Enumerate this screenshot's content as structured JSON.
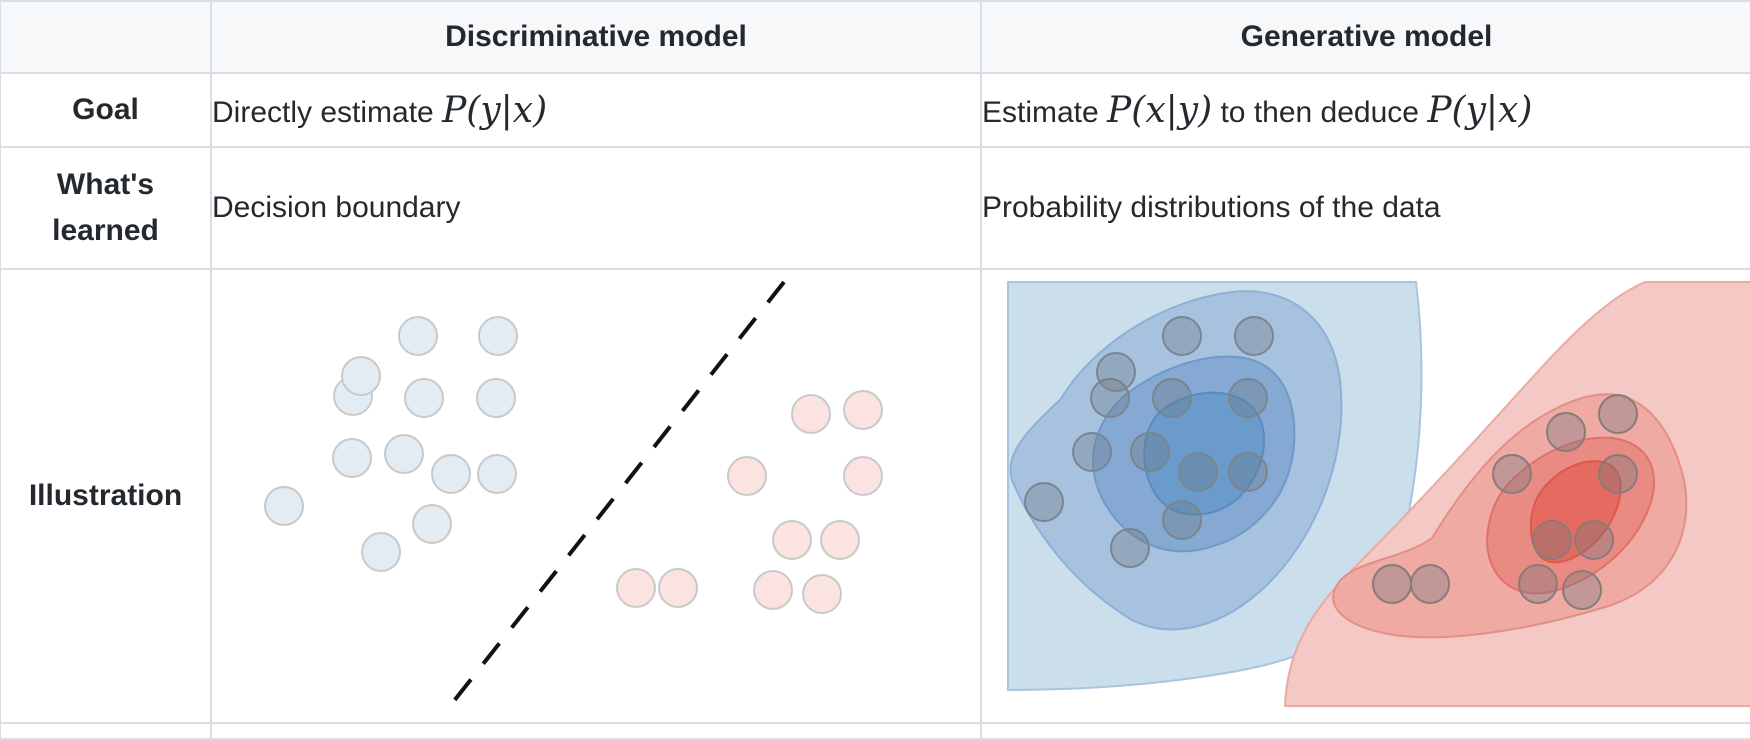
{
  "table": {
    "columns": [
      "",
      "Discriminative model",
      "Generative model"
    ],
    "rows": {
      "goal": {
        "label": "Goal",
        "discriminative": {
          "text": "Directly estimate ",
          "math": "P(y|x)"
        },
        "generative": {
          "text1": "Estimate ",
          "math1": "P(x|y)",
          "text2": " to then deduce ",
          "math2": "P(y|x)"
        }
      },
      "learned": {
        "label": "What's learned",
        "discriminative": "Decision boundary",
        "generative": "Probability distributions of the data"
      },
      "illustration": {
        "label": "Illustration"
      }
    }
  },
  "colors": {
    "blue_point_fill": "#e3ebf3",
    "red_point_fill": "#fae3e1",
    "point_stroke": "#c9c9c9",
    "boundary_line": "#111111",
    "blue_contours": [
      "#cbdeeb",
      "#a6c2df",
      "#85a9d3",
      "#6a9bcb"
    ],
    "red_contours": [
      "#f4c8c4",
      "#efaaa4",
      "#ea8b83",
      "#e56a5f"
    ],
    "dark_point_fill": "rgba(110,120,130,0.35)"
  }
}
